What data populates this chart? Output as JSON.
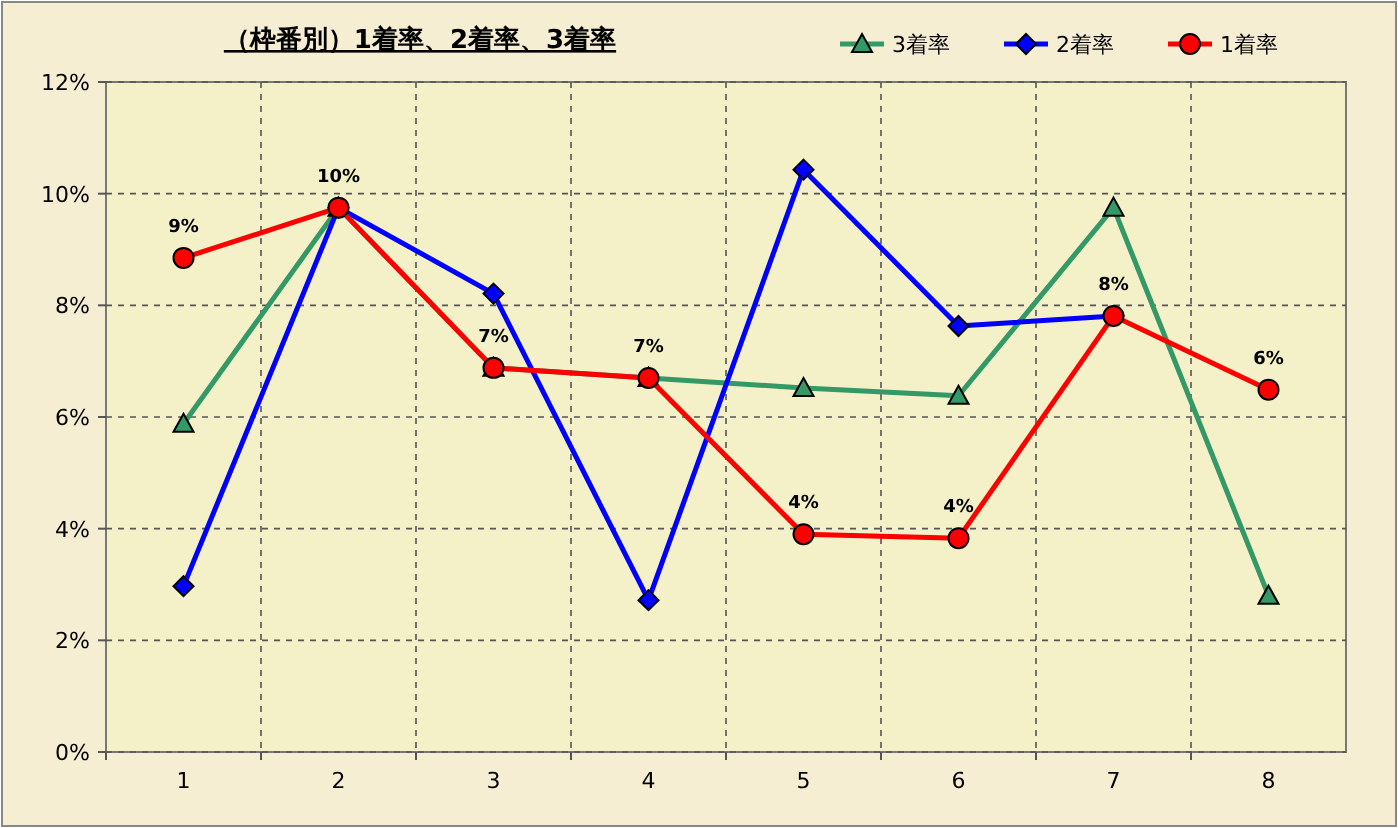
{
  "chart_data": {
    "type": "line",
    "title": "（枠番別）1着率、2着率、3着率",
    "categories": [
      "1",
      "2",
      "3",
      "4",
      "5",
      "6",
      "7",
      "8"
    ],
    "series": [
      {
        "name": "3着率",
        "color": "#339966",
        "marker": "triangle",
        "values": [
          5.88,
          9.75,
          6.88,
          6.7,
          6.52,
          6.38,
          9.75,
          2.8
        ]
      },
      {
        "name": "2着率",
        "color": "#0000ff",
        "marker": "diamond",
        "values": [
          2.97,
          9.75,
          8.21,
          2.72,
          10.43,
          7.63,
          7.81,
          null
        ]
      },
      {
        "name": "1着率",
        "color": "#ff0000",
        "marker": "circle",
        "values": [
          8.85,
          9.75,
          6.88,
          6.7,
          3.9,
          3.83,
          7.81,
          6.49
        ],
        "value_labels": [
          "9%",
          "10%",
          "7%",
          "7%",
          "4%",
          "4%",
          "8%",
          "6%"
        ]
      }
    ],
    "ylim": [
      0,
      12
    ],
    "yticks": [
      {
        "value": 0,
        "label": "0%"
      },
      {
        "value": 2,
        "label": "2%"
      },
      {
        "value": 4,
        "label": "4%"
      },
      {
        "value": 6,
        "label": "6%"
      },
      {
        "value": 8,
        "label": "8%"
      },
      {
        "value": 10,
        "label": "10%"
      },
      {
        "value": 12,
        "label": "12%"
      }
    ],
    "grid": true,
    "legend": "top right"
  }
}
